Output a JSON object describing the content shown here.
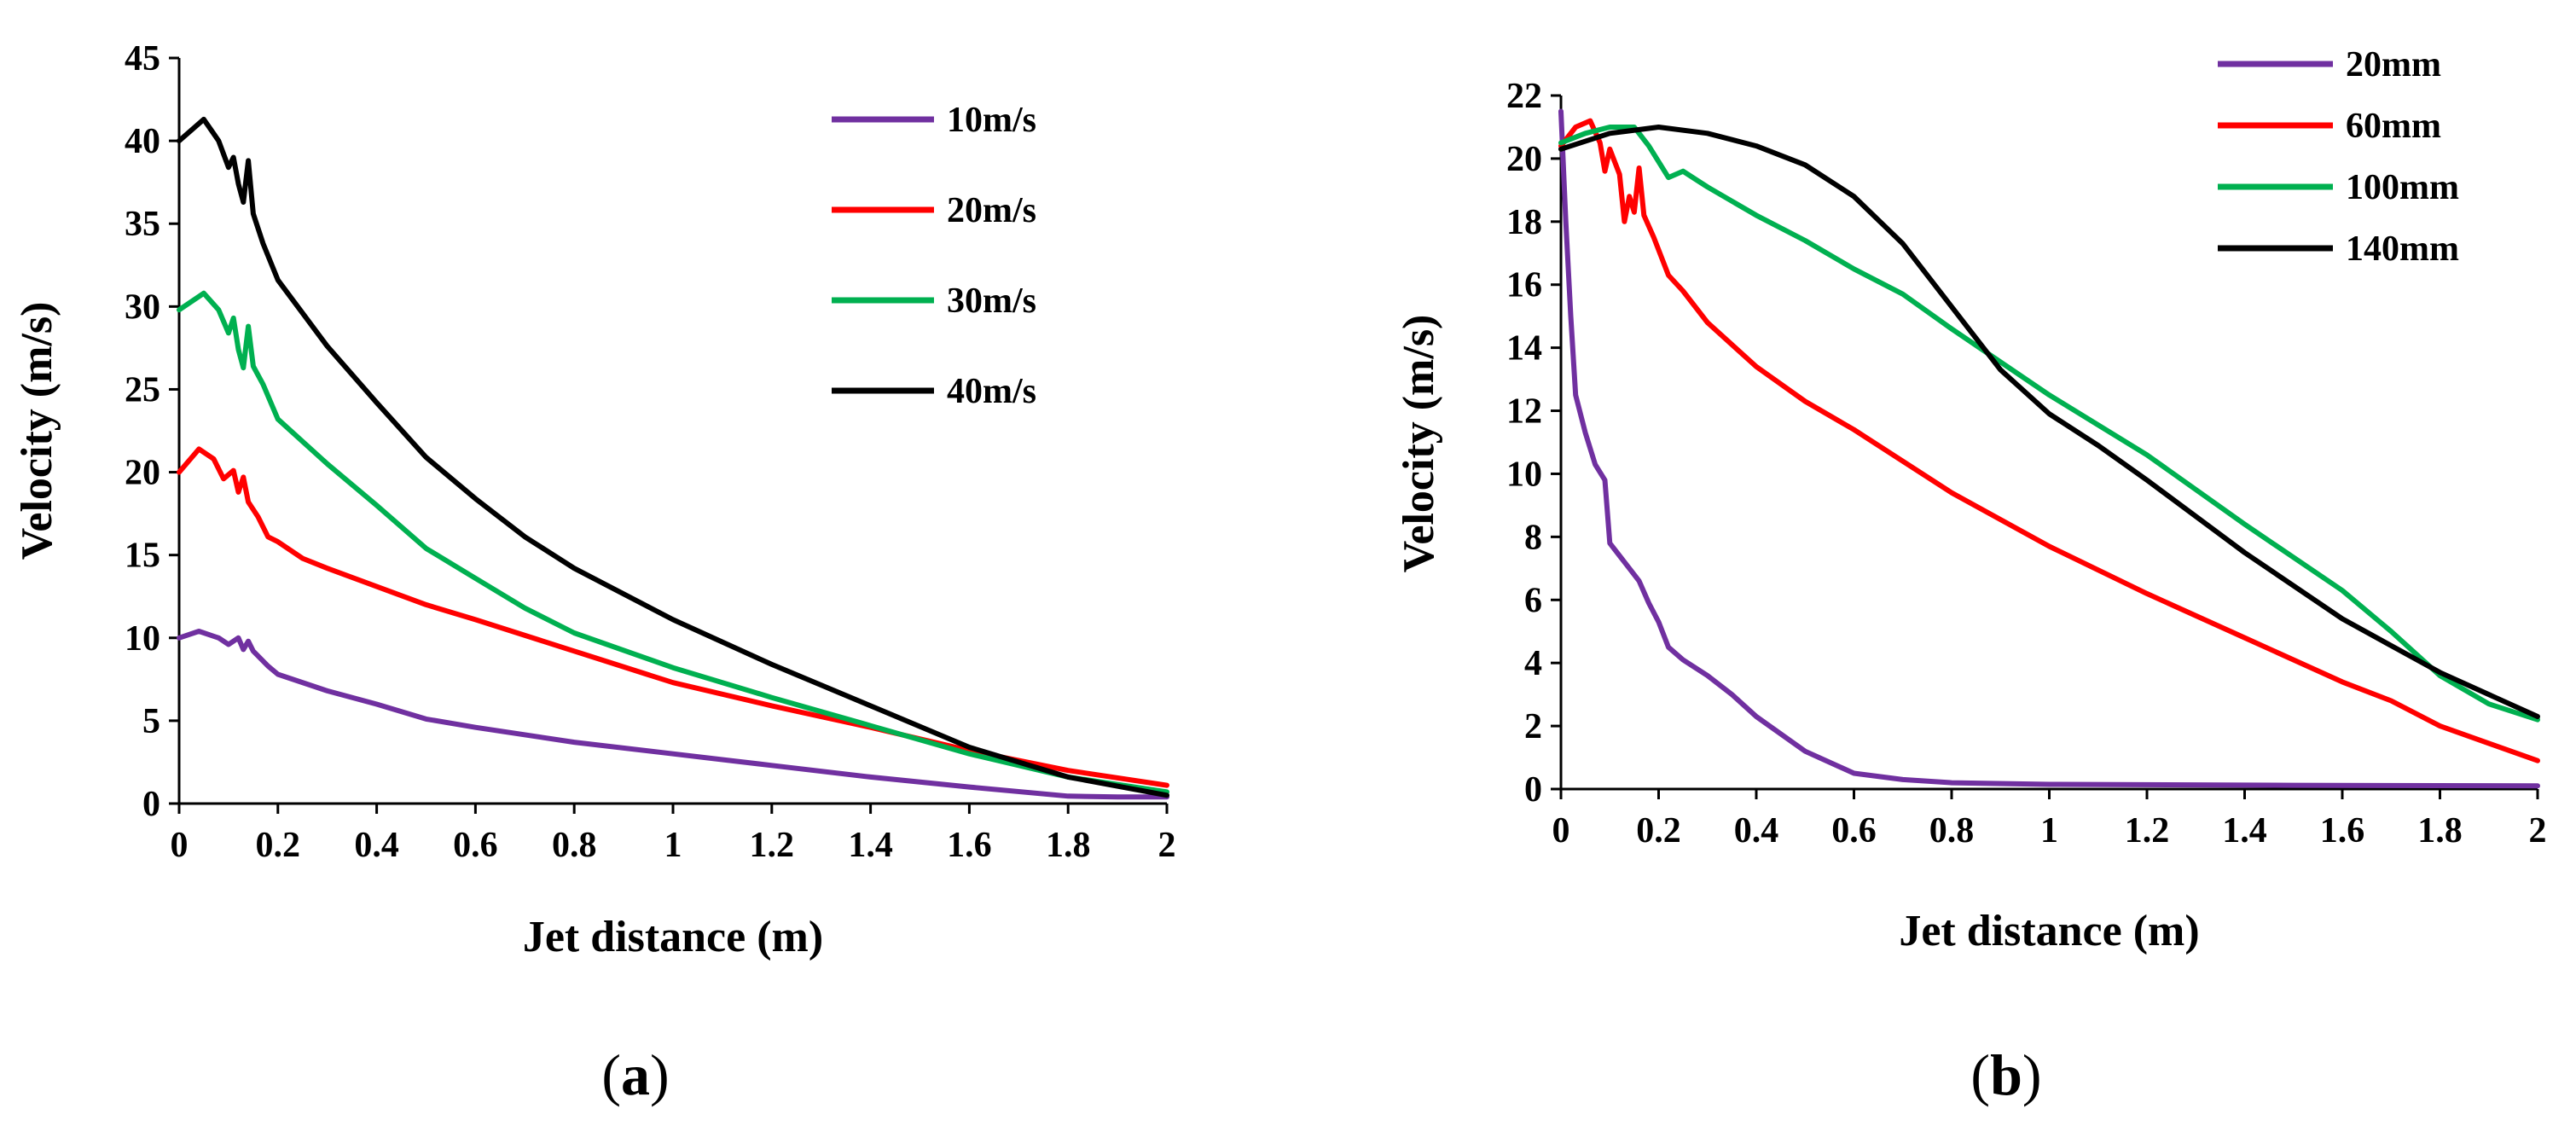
{
  "chart_data": [
    {
      "type": "line",
      "panel": "a",
      "xlabel": "Jet distance (m)",
      "ylabel": "Velocity (m/s)",
      "xlim": [
        0,
        2
      ],
      "ylim": [
        0,
        45
      ],
      "xticks": [
        "0",
        "0.2",
        "0.4",
        "0.6",
        "0.8",
        "1",
        "1.2",
        "1.4",
        "1.6",
        "1.8",
        "2"
      ],
      "yticks": [
        "0",
        "5",
        "10",
        "15",
        "20",
        "25",
        "30",
        "35",
        "40",
        "45"
      ],
      "legend_position": "top-right",
      "series": [
        {
          "name": "10m/s",
          "color": "#7030A0",
          "points": [
            [
              0,
              10
            ],
            [
              0.04,
              10.4
            ],
            [
              0.08,
              10
            ],
            [
              0.1,
              9.6
            ],
            [
              0.12,
              10
            ],
            [
              0.13,
              9.3
            ],
            [
              0.14,
              9.8
            ],
            [
              0.15,
              9.2
            ],
            [
              0.18,
              8.3
            ],
            [
              0.2,
              7.8
            ],
            [
              0.3,
              6.8
            ],
            [
              0.4,
              6
            ],
            [
              0.5,
              5.1
            ],
            [
              0.6,
              4.6
            ],
            [
              0.8,
              3.7
            ],
            [
              1,
              3
            ],
            [
              1.2,
              2.3
            ],
            [
              1.4,
              1.6
            ],
            [
              1.6,
              1.0
            ],
            [
              1.8,
              0.45
            ],
            [
              1.9,
              0.4
            ],
            [
              2,
              0.4
            ]
          ]
        },
        {
          "name": "20m/s",
          "color": "#FF0000",
          "points": [
            [
              0,
              20
            ],
            [
              0.04,
              21.4
            ],
            [
              0.07,
              20.8
            ],
            [
              0.09,
              19.6
            ],
            [
              0.11,
              20.1
            ],
            [
              0.12,
              18.8
            ],
            [
              0.13,
              19.7
            ],
            [
              0.14,
              18.2
            ],
            [
              0.16,
              17.3
            ],
            [
              0.18,
              16.1
            ],
            [
              0.2,
              15.8
            ],
            [
              0.25,
              14.8
            ],
            [
              0.3,
              14.2
            ],
            [
              0.4,
              13.1
            ],
            [
              0.5,
              12
            ],
            [
              0.6,
              11.1
            ],
            [
              0.8,
              9.2
            ],
            [
              1,
              7.3
            ],
            [
              1.2,
              5.9
            ],
            [
              1.4,
              4.6
            ],
            [
              1.6,
              3.2
            ],
            [
              1.8,
              2
            ],
            [
              2,
              1.1
            ]
          ]
        },
        {
          "name": "30m/s",
          "color": "#00B050",
          "points": [
            [
              0,
              29.8
            ],
            [
              0.05,
              30.8
            ],
            [
              0.08,
              29.8
            ],
            [
              0.1,
              28.4
            ],
            [
              0.11,
              29.3
            ],
            [
              0.12,
              27.4
            ],
            [
              0.13,
              26.3
            ],
            [
              0.14,
              28.8
            ],
            [
              0.15,
              26.4
            ],
            [
              0.17,
              25.3
            ],
            [
              0.2,
              23.2
            ],
            [
              0.3,
              20.5
            ],
            [
              0.4,
              18
            ],
            [
              0.5,
              15.4
            ],
            [
              0.6,
              13.6
            ],
            [
              0.7,
              11.8
            ],
            [
              0.8,
              10.3
            ],
            [
              1,
              8.2
            ],
            [
              1.2,
              6.4
            ],
            [
              1.4,
              4.7
            ],
            [
              1.6,
              3
            ],
            [
              1.8,
              1.6
            ],
            [
              2,
              0.7
            ]
          ]
        },
        {
          "name": "40m/s",
          "color": "#000000",
          "points": [
            [
              0,
              40
            ],
            [
              0.05,
              41.3
            ],
            [
              0.08,
              40
            ],
            [
              0.1,
              38.4
            ],
            [
              0.11,
              39
            ],
            [
              0.12,
              37.4
            ],
            [
              0.13,
              36.3
            ],
            [
              0.14,
              38.8
            ],
            [
              0.15,
              35.6
            ],
            [
              0.17,
              33.8
            ],
            [
              0.2,
              31.6
            ],
            [
              0.3,
              27.6
            ],
            [
              0.4,
              24.2
            ],
            [
              0.5,
              20.9
            ],
            [
              0.6,
              18.4
            ],
            [
              0.7,
              16.1
            ],
            [
              0.8,
              14.2
            ],
            [
              1,
              11.1
            ],
            [
              1.2,
              8.4
            ],
            [
              1.4,
              5.9
            ],
            [
              1.6,
              3.4
            ],
            [
              1.8,
              1.6
            ],
            [
              2,
              0.5
            ]
          ]
        }
      ]
    },
    {
      "type": "line",
      "panel": "b",
      "xlabel": "Jet distance (m)",
      "ylabel": "Velocity (m/s)",
      "xlim": [
        0,
        2
      ],
      "ylim": [
        0,
        22
      ],
      "xticks": [
        "0",
        "0.2",
        "0.4",
        "0.6",
        "0.8",
        "1",
        "1.2",
        "1.4",
        "1.6",
        "1.8",
        "2"
      ],
      "yticks": [
        "0",
        "2",
        "4",
        "6",
        "8",
        "10",
        "12",
        "14",
        "16",
        "18",
        "20",
        "22"
      ],
      "legend_position": "top-right",
      "series": [
        {
          "name": "20mm",
          "color": "#7030A0",
          "points": [
            [
              0,
              21.5
            ],
            [
              0.01,
              18
            ],
            [
              0.02,
              15
            ],
            [
              0.03,
              12.5
            ],
            [
              0.05,
              11.3
            ],
            [
              0.07,
              10.3
            ],
            [
              0.09,
              9.8
            ],
            [
              0.1,
              7.8
            ],
            [
              0.12,
              7.4
            ],
            [
              0.14,
              7
            ],
            [
              0.16,
              6.6
            ],
            [
              0.18,
              5.9
            ],
            [
              0.2,
              5.3
            ],
            [
              0.22,
              4.5
            ],
            [
              0.25,
              4.1
            ],
            [
              0.3,
              3.6
            ],
            [
              0.35,
              3
            ],
            [
              0.4,
              2.3
            ],
            [
              0.5,
              1.2
            ],
            [
              0.6,
              0.5
            ],
            [
              0.7,
              0.3
            ],
            [
              0.8,
              0.2
            ],
            [
              1,
              0.15
            ],
            [
              1.5,
              0.12
            ],
            [
              2,
              0.1
            ]
          ]
        },
        {
          "name": "60mm",
          "color": "#FF0000",
          "points": [
            [
              0,
              20.4
            ],
            [
              0.03,
              21
            ],
            [
              0.06,
              21.2
            ],
            [
              0.08,
              20.5
            ],
            [
              0.09,
              19.6
            ],
            [
              0.1,
              20.3
            ],
            [
              0.12,
              19.5
            ],
            [
              0.13,
              18
            ],
            [
              0.14,
              18.8
            ],
            [
              0.15,
              18.3
            ],
            [
              0.16,
              19.7
            ],
            [
              0.17,
              18.2
            ],
            [
              0.19,
              17.5
            ],
            [
              0.22,
              16.3
            ],
            [
              0.25,
              15.8
            ],
            [
              0.3,
              14.8
            ],
            [
              0.4,
              13.4
            ],
            [
              0.5,
              12.3
            ],
            [
              0.6,
              11.4
            ],
            [
              0.8,
              9.4
            ],
            [
              1,
              7.7
            ],
            [
              1.2,
              6.2
            ],
            [
              1.4,
              4.8
            ],
            [
              1.6,
              3.4
            ],
            [
              1.7,
              2.8
            ],
            [
              1.8,
              2
            ],
            [
              2,
              0.9
            ]
          ]
        },
        {
          "name": "100mm",
          "color": "#00B050",
          "points": [
            [
              0,
              20.5
            ],
            [
              0.05,
              20.8
            ],
            [
              0.1,
              21
            ],
            [
              0.15,
              21
            ],
            [
              0.18,
              20.4
            ],
            [
              0.2,
              19.9
            ],
            [
              0.22,
              19.4
            ],
            [
              0.25,
              19.6
            ],
            [
              0.28,
              19.3
            ],
            [
              0.3,
              19.1
            ],
            [
              0.4,
              18.2
            ],
            [
              0.5,
              17.4
            ],
            [
              0.6,
              16.5
            ],
            [
              0.7,
              15.7
            ],
            [
              0.8,
              14.6
            ],
            [
              1,
              12.5
            ],
            [
              1.2,
              10.6
            ],
            [
              1.4,
              8.4
            ],
            [
              1.6,
              6.3
            ],
            [
              1.7,
              5
            ],
            [
              1.8,
              3.6
            ],
            [
              1.9,
              2.7
            ],
            [
              2,
              2.2
            ]
          ]
        },
        {
          "name": "140mm",
          "color": "#000000",
          "points": [
            [
              0,
              20.3
            ],
            [
              0.1,
              20.8
            ],
            [
              0.2,
              21
            ],
            [
              0.3,
              20.8
            ],
            [
              0.4,
              20.4
            ],
            [
              0.5,
              19.8
            ],
            [
              0.6,
              18.8
            ],
            [
              0.7,
              17.3
            ],
            [
              0.8,
              15.3
            ],
            [
              0.9,
              13.3
            ],
            [
              1,
              11.9
            ],
            [
              1.1,
              10.9
            ],
            [
              1.2,
              9.8
            ],
            [
              1.4,
              7.5
            ],
            [
              1.6,
              5.4
            ],
            [
              1.8,
              3.7
            ],
            [
              2,
              2.3
            ]
          ]
        }
      ]
    }
  ],
  "panel_labels": {
    "a": "a",
    "b": "b"
  }
}
